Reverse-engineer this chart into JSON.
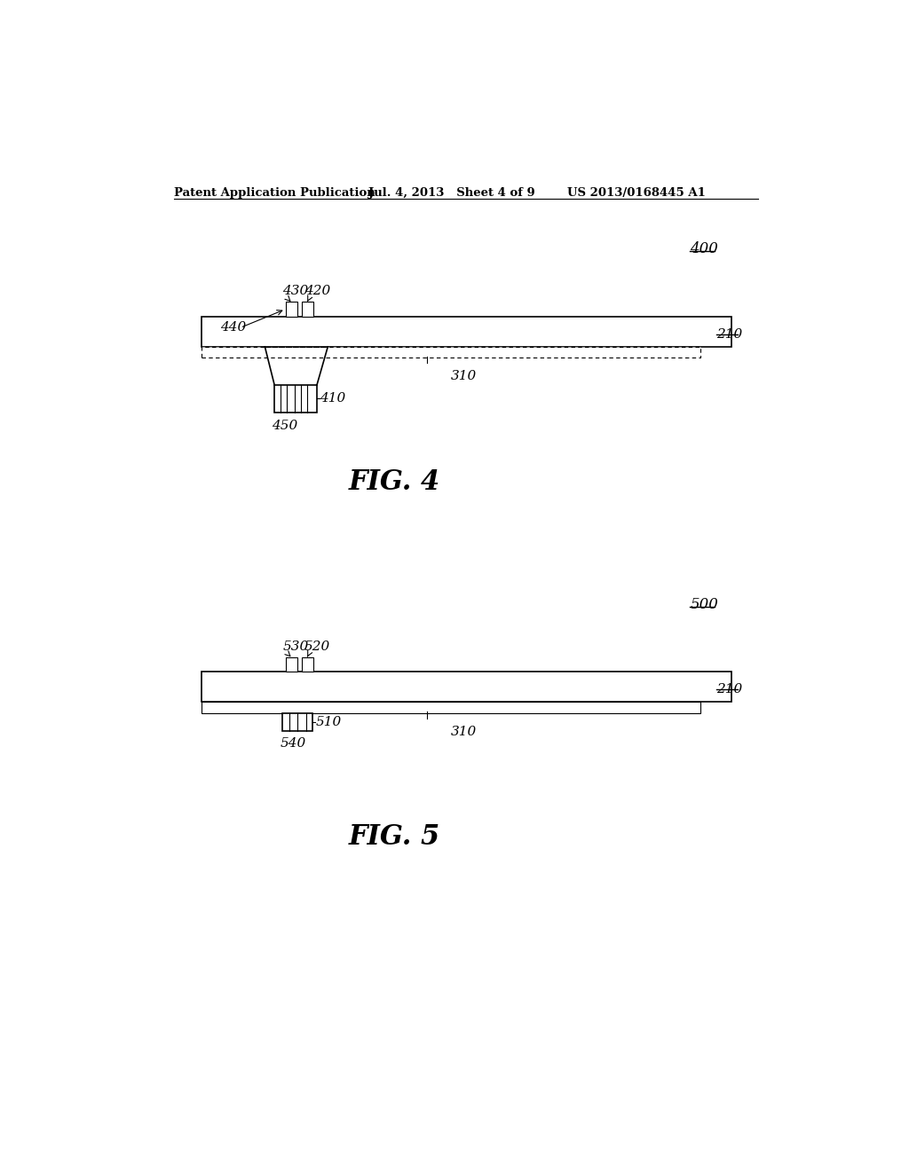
{
  "bg_color": "#ffffff",
  "header_left": "Patent Application Publication",
  "header_mid": "Jul. 4, 2013   Sheet 4 of 9",
  "header_right": "US 2013/0168445 A1",
  "fig4_label": "FIG. 4",
  "fig5_label": "FIG. 5",
  "fig4_ref": "400",
  "fig5_ref": "500",
  "label_210": "210",
  "label_310": "310",
  "label_400_430": "430",
  "label_400_420": "420",
  "label_400_440": "440",
  "label_400_410": "410",
  "label_400_450": "450",
  "label_500_530": "530",
  "label_500_520": "520",
  "label_500_540": "540",
  "label_500_510": "510"
}
